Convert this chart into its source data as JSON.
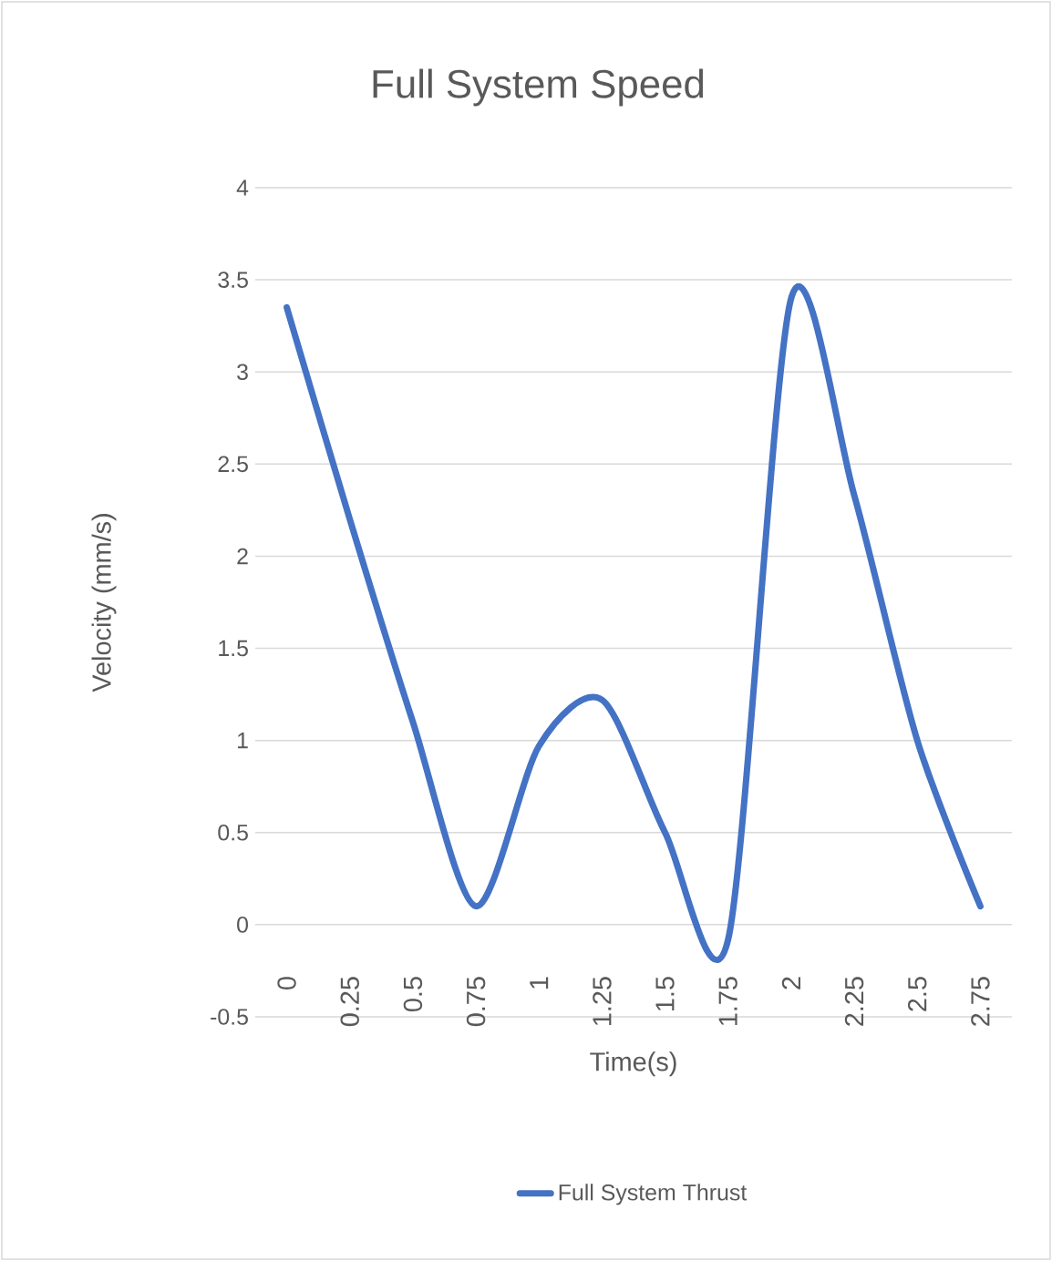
{
  "chart_data": {
    "type": "line",
    "title": "Full System Speed",
    "xlabel": "Time(s)",
    "ylabel": "Velocity (mm/s)",
    "categories": [
      "0",
      "0.25",
      "0.5",
      "0.75",
      "1",
      "1.25",
      "1.5",
      "1.75",
      "2",
      "2.25",
      "2.5",
      "2.75"
    ],
    "series": [
      {
        "name": "Full System Thrust",
        "color": "#4472c4",
        "values": [
          3.35,
          2.2,
          1.1,
          0.1,
          0.97,
          1.22,
          0.5,
          -0.08,
          3.4,
          2.33,
          1.0,
          0.1
        ]
      }
    ],
    "ylim": [
      -0.5,
      4
    ],
    "yticks": [
      -0.5,
      0,
      0.5,
      1,
      1.5,
      2,
      2.5,
      3,
      3.5,
      4
    ],
    "grid": "y",
    "legend": "bottom",
    "marker": "none",
    "line_style": "solid"
  }
}
